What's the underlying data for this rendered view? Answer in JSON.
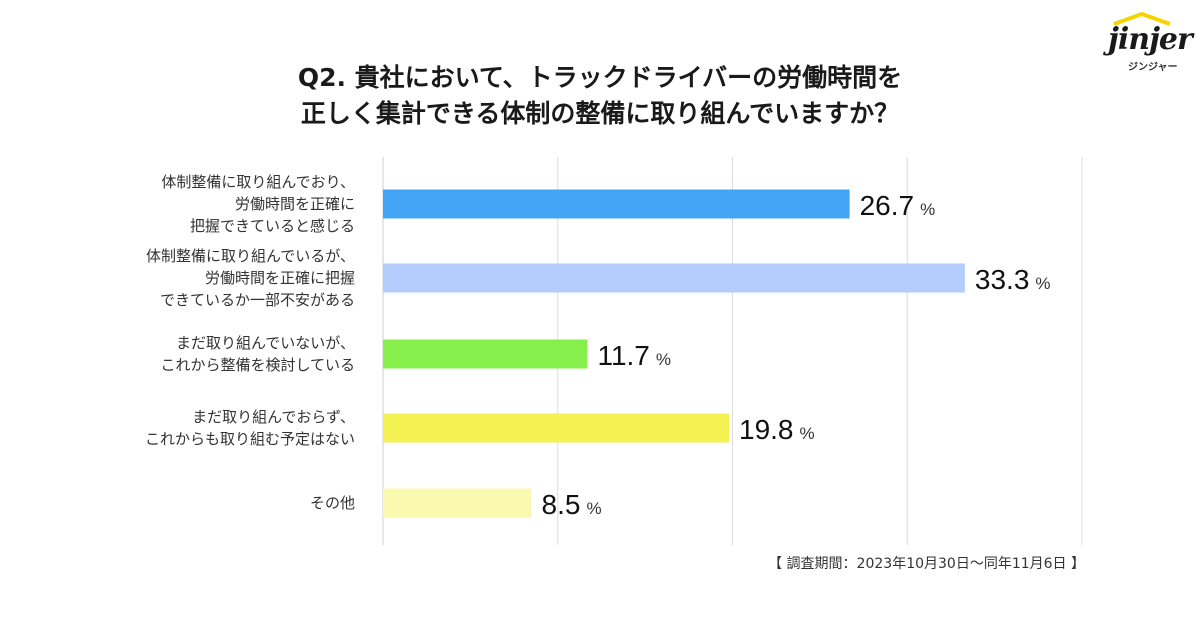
{
  "title_line1": "Q2. 貴社において、トラックドライバーの労働時間を",
  "title_line2": "正しく集計できる体制の整備に取り組んでいますか？",
  "logo": {
    "word": "jinjer",
    "kana": "ジンジャー"
  },
  "note": "【 調査期間：2023年10月30日〜同年11月6日 】",
  "unit": "%",
  "chart_data": {
    "type": "bar",
    "orientation": "horizontal",
    "categories": [
      [
        "体制整備に取り組んでおり、",
        "労働時間を正確に",
        "把握できていると感じる"
      ],
      [
        "体制整備に取り組んでいるが、",
        "労働時間を正確に把握",
        "できているか一部不安がある"
      ],
      [
        "まだ取り組んでいないが、",
        "これから整備を検討している"
      ],
      [
        "まだ取り組んでおらず、",
        "これからも取り組む予定はない"
      ],
      [
        "その他"
      ]
    ],
    "values": [
      26.7,
      33.3,
      11.7,
      19.8,
      8.5
    ],
    "value_labels": [
      "26.7",
      "33.3",
      "11.7",
      "19.8",
      "8.5"
    ],
    "xlim": [
      0,
      40
    ],
    "grid": true,
    "colors": [
      "#42a5f5",
      "#b3cdfd",
      "#86ef4b",
      "#f3f252",
      "#faf9b0"
    ]
  }
}
